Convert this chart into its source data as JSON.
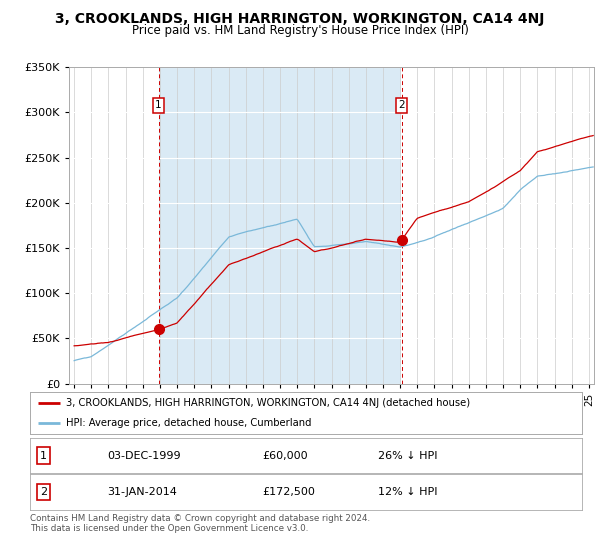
{
  "title": "3, CROOKLANDS, HIGH HARRINGTON, WORKINGTON, CA14 4NJ",
  "subtitle": "Price paid vs. HM Land Registry's House Price Index (HPI)",
  "legend_line1": "3, CROOKLANDS, HIGH HARRINGTON, WORKINGTON, CA14 4NJ (detached house)",
  "legend_line2": "HPI: Average price, detached house, Cumberland",
  "footnote": "Contains HM Land Registry data © Crown copyright and database right 2024.\nThis data is licensed under the Open Government Licence v3.0.",
  "sale1_date": "03-DEC-1999",
  "sale1_price": 60000,
  "sale1_hpi_text": "26% ↓ HPI",
  "sale2_date": "31-JAN-2014",
  "sale2_price": 172500,
  "sale2_hpi_text": "12% ↓ HPI",
  "hpi_color": "#7ab8d9",
  "price_color": "#cc0000",
  "background_fill": "#daeaf5",
  "sale1_x": 1999.92,
  "sale2_x": 2014.08,
  "ylim_min": 0,
  "ylim_max": 350000,
  "xmin": 1994.7,
  "xmax": 2025.3
}
